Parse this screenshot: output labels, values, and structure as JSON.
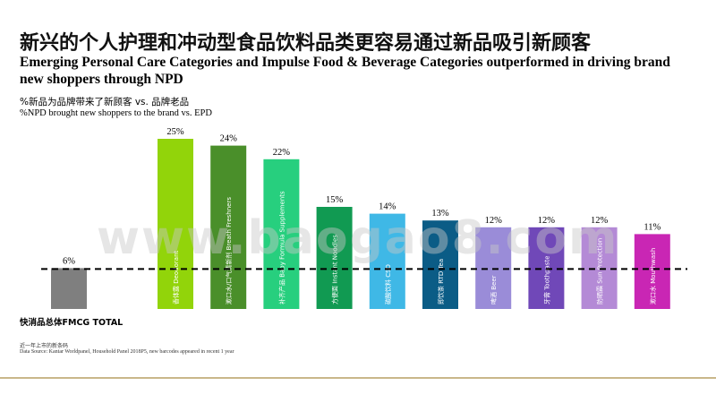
{
  "title_cn": "新兴的个人护理和冲动型食品饮料品类更容易通过新品吸引新顾客",
  "title_en": "Emerging Personal Care Categories and Impulse Food & Beverage Categories outperformed in driving brand new shoppers through NPD",
  "subtitle_cn": "%新品为品牌带来了新顾客 vs. 品牌老品",
  "subtitle_en": "%NPD brought new shoppers to the brand vs. EPD",
  "fmcg_label": "快消品总体FMCG TOTAL",
  "note_cn": "近一年上市的新条码",
  "note_en": "Data Source: Kantar Worldpanel, Household Panel 2018P5, new barcodes appeared in recent 1 year",
  "watermark": "www.baogao8.com",
  "chart_data": {
    "type": "bar",
    "unit": "%",
    "ylim": [
      0,
      25
    ],
    "reference_line": 6,
    "categories": [
      "FMCG TOTAL",
      "香体露 Deodorant",
      "漱口水/口气清新剂 Breath Freshners",
      "补齐产品 Baby Formula Supplements",
      "方便面 Instant Noodles",
      "碳酸饮料 CSD",
      "即饮茶 RTD Tea",
      "啤酒 Beer",
      "牙膏 Toothpaste",
      "防晒霜 Sun Protection",
      "漱口水 Mouthwash"
    ],
    "values": [
      6,
      25,
      24,
      22,
      15,
      14,
      13,
      12,
      12,
      12,
      11
    ],
    "value_labels": [
      "6%",
      "25%",
      "24%",
      "22%",
      "15%",
      "14%",
      "13%",
      "12%",
      "12%",
      "12%",
      "11%"
    ],
    "colors": [
      "#7f7f7f",
      "#92d40a",
      "#4a8f2a",
      "#27cf7e",
      "#119a52",
      "#3fb8e6",
      "#0b5c86",
      "#9a8cd8",
      "#7048b8",
      "#b48ad6",
      "#c926b4"
    ]
  }
}
